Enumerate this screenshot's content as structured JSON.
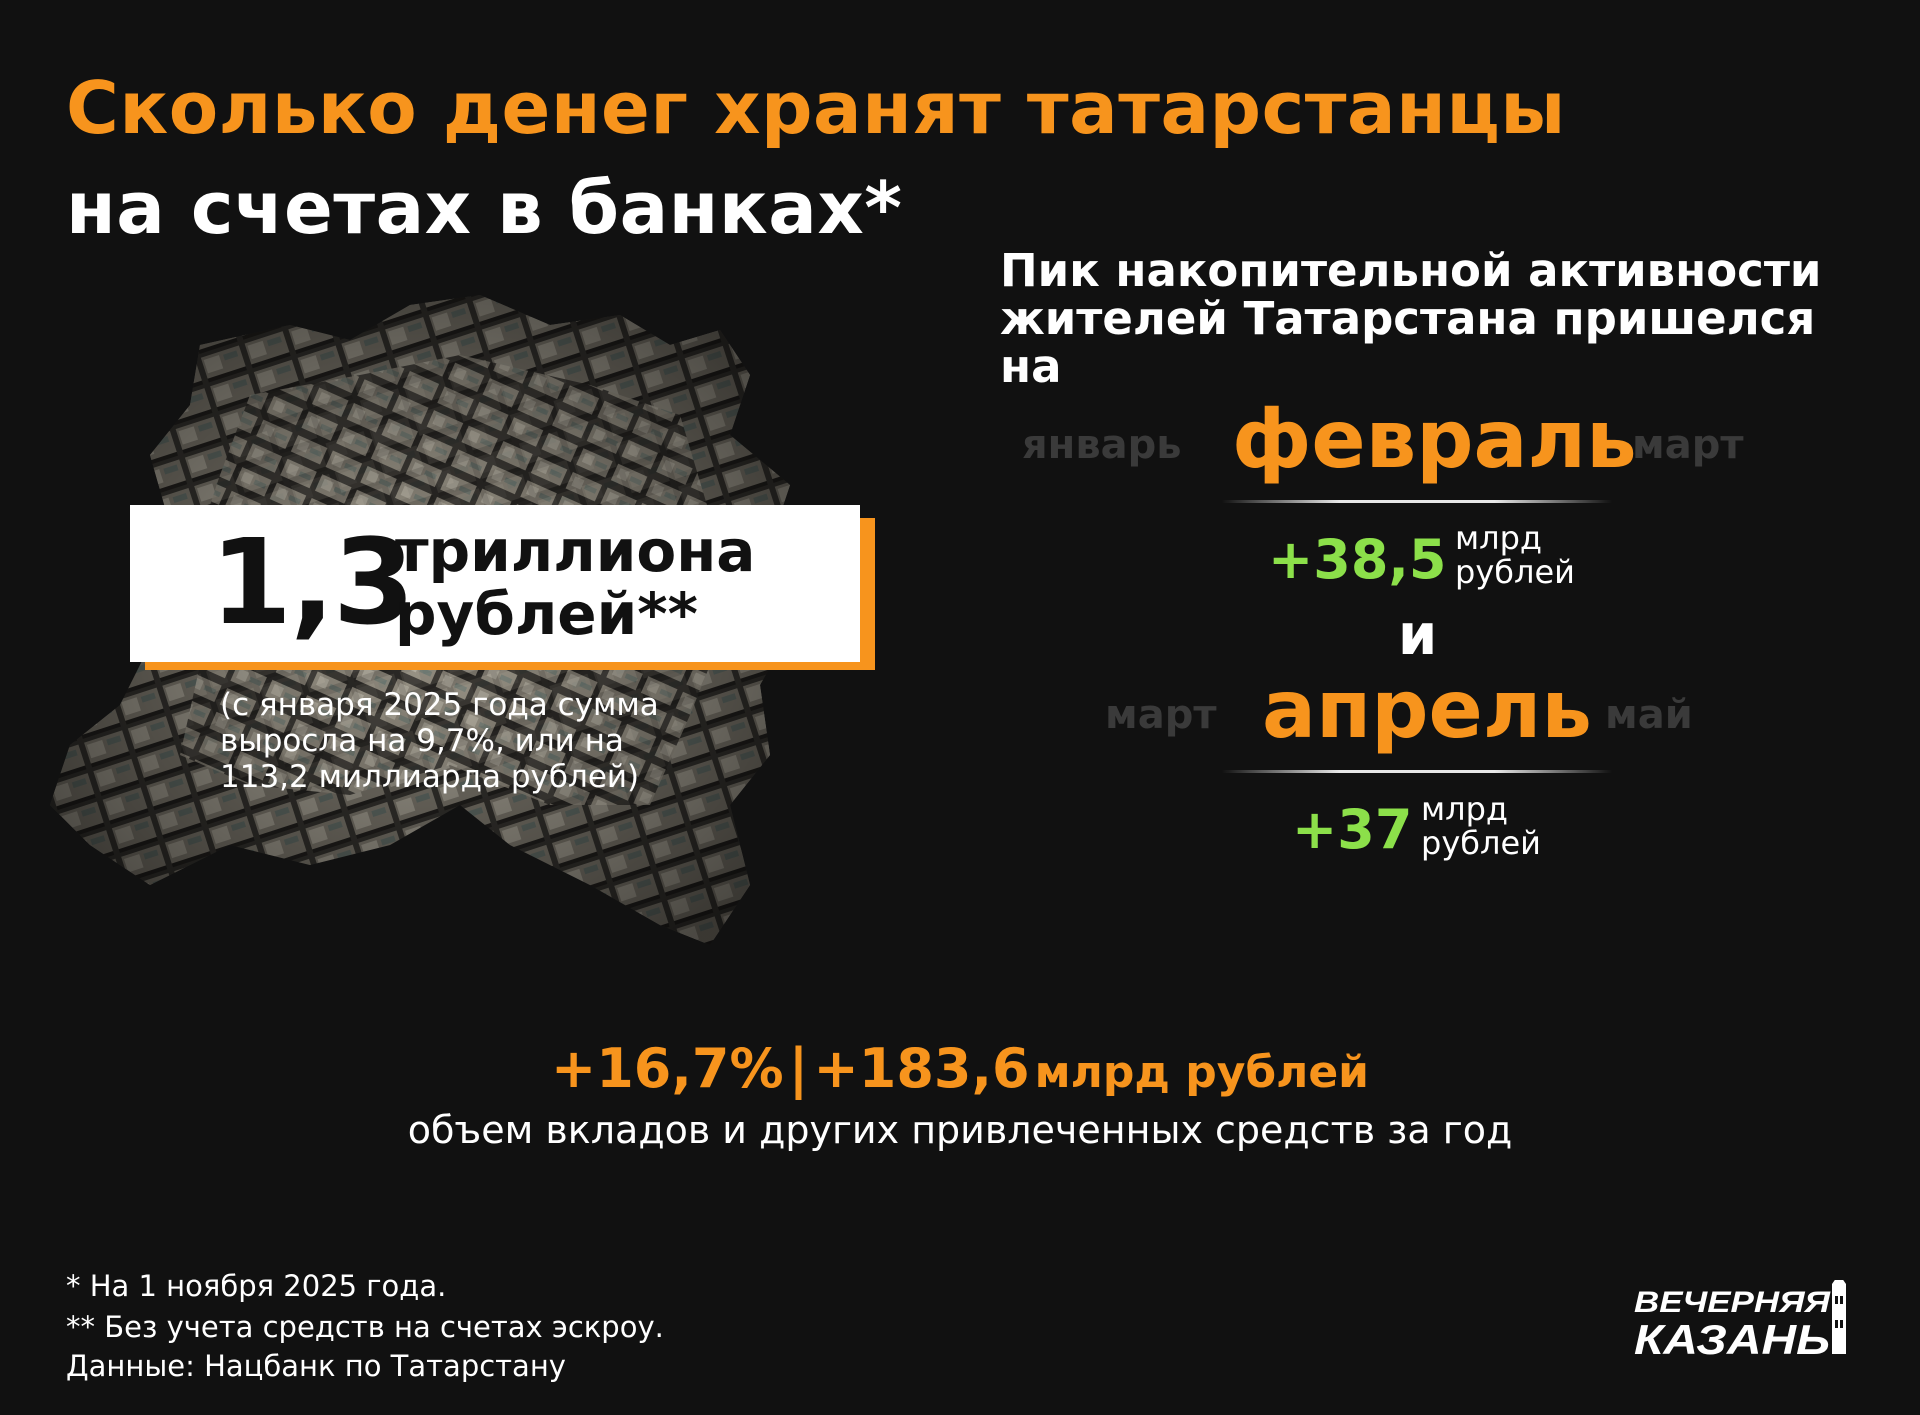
{
  "title": {
    "line1": "Сколько денег хранят татарстанцы",
    "line2": "на счетах в банках*"
  },
  "total": {
    "value": "1,3",
    "unit_line1": "триллиона",
    "unit_line2": "рублей**",
    "note_lines": [
      "(с января 2025 года сумма",
      "выросла на 9,7%, или на",
      "113,2 миллиарда рублей)"
    ]
  },
  "peak": {
    "heading_lines": [
      "Пик накопительной активности",
      "жителей Татарстана пришелся",
      "на"
    ],
    "first": {
      "prev": "январь",
      "month": "февраль",
      "next": "март",
      "value": "+38,5",
      "unit_line1": "млрд",
      "unit_line2": "рублей"
    },
    "connector": "и",
    "second": {
      "prev": "март",
      "month": "апрель",
      "next": "май",
      "value": "+37",
      "unit_line1": "млрд",
      "unit_line2": "рублей"
    }
  },
  "yearly": {
    "percent": "+16,7%",
    "separator": "|",
    "amount": "+183,6",
    "unit": "млрд рублей",
    "caption": "объем вкладов и других привлеченных средств за год"
  },
  "footnotes": [
    "* На 1 ноября 2025 года.",
    "** Без учета средств на счетах эскроу.",
    "Данные: Нацбанк по Татарстану"
  ],
  "logo": {
    "line1": "ВЕЧЕРНЯЯ",
    "line2": "КАЗАНЬ"
  },
  "colors": {
    "background": "#111111",
    "accent_orange": "#F7941D",
    "accent_green": "#8CE04A",
    "muted_month": "#3a3a3a"
  }
}
